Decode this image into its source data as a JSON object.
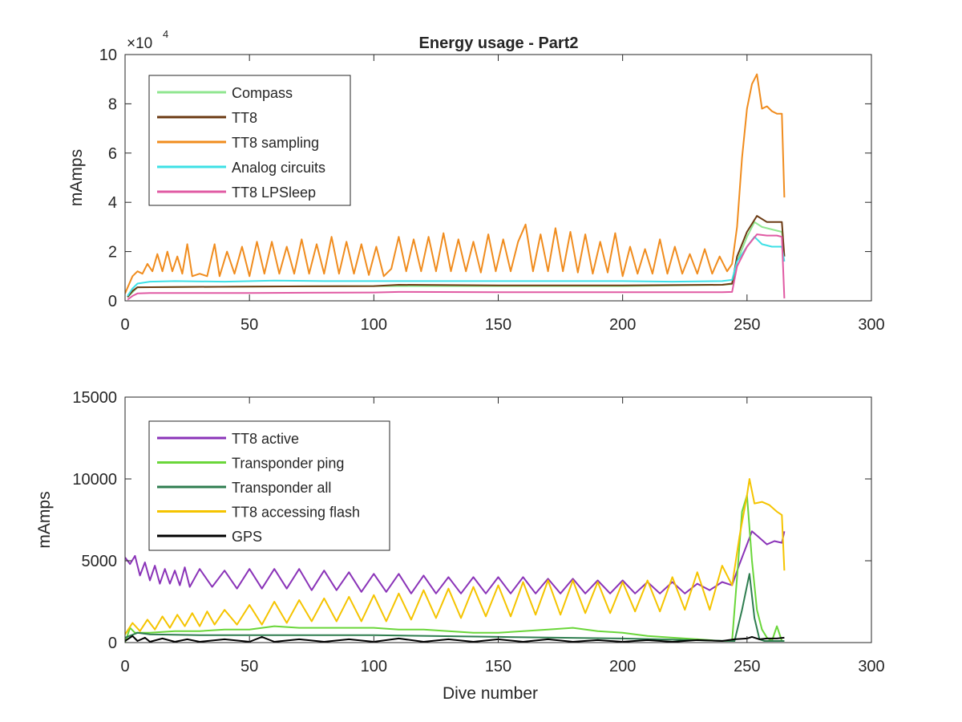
{
  "figure": {
    "title": "Energy usage - Part2",
    "exponent_label": "×10",
    "exponent_power": "4"
  },
  "chart_data": [
    {
      "type": "line",
      "title": "Energy usage - Part2",
      "xlabel": "",
      "ylabel": "mAmps",
      "xlim": [
        0,
        300
      ],
      "ylim": [
        0,
        100000
      ],
      "xticks": [
        0,
        50,
        100,
        150,
        200,
        250,
        300
      ],
      "xtick_labels": [
        "0",
        "50",
        "100",
        "150",
        "200",
        "250",
        "300"
      ],
      "yticks": [
        0,
        20000,
        40000,
        60000,
        80000,
        100000
      ],
      "ytick_labels": [
        "0",
        "2",
        "4",
        "6",
        "8",
        "10"
      ],
      "y_exponent": "×10^4",
      "legend_position": "top-left",
      "grid": false,
      "series": [
        {
          "name": "Compass",
          "color": "#8fe68f",
          "x": [
            1,
            3,
            5,
            50,
            100,
            150,
            200,
            240,
            244,
            246,
            250,
            253,
            256,
            260,
            264,
            265
          ],
          "y": [
            1500,
            3500,
            5500,
            5800,
            6000,
            6000,
            6000,
            6500,
            6800,
            16000,
            26000,
            32000,
            30000,
            29000,
            28000,
            18000
          ]
        },
        {
          "name": "TT8",
          "color": "#6b3a12",
          "x": [
            1,
            3,
            5,
            50,
            100,
            110,
            150,
            200,
            240,
            244,
            246,
            250,
            254,
            258,
            262,
            264,
            265
          ],
          "y": [
            1500,
            4000,
            5500,
            5800,
            6000,
            6500,
            6300,
            6300,
            6500,
            7000,
            18000,
            28000,
            34500,
            32000,
            32000,
            32000,
            18000
          ]
        },
        {
          "name": "TT8 sampling",
          "color": "#f08c1e",
          "x": [
            0,
            3,
            5,
            7,
            9,
            11,
            13,
            15,
            17,
            19,
            21,
            23,
            25,
            27,
            30,
            33,
            36,
            38,
            41,
            44,
            47,
            50,
            53,
            56,
            59,
            62,
            65,
            68,
            71,
            74,
            77,
            80,
            83,
            86,
            89,
            92,
            95,
            98,
            101,
            104,
            107,
            110,
            113,
            116,
            119,
            122,
            125,
            128,
            131,
            134,
            137,
            140,
            143,
            146,
            149,
            152,
            155,
            158,
            161,
            164,
            167,
            170,
            173,
            176,
            179,
            182,
            185,
            188,
            191,
            194,
            197,
            200,
            203,
            206,
            209,
            212,
            215,
            218,
            221,
            224,
            227,
            230,
            233,
            236,
            239,
            242,
            244,
            246,
            248,
            250,
            252,
            254,
            256,
            258,
            260,
            262,
            264,
            265
          ],
          "y": [
            3000,
            10000,
            12000,
            11000,
            15000,
            12000,
            19000,
            12000,
            20000,
            12000,
            18000,
            11000,
            23000,
            10000,
            11000,
            10000,
            23000,
            10000,
            20000,
            11000,
            22000,
            10000,
            24000,
            11000,
            24000,
            11000,
            22000,
            11000,
            25000,
            11000,
            23000,
            11000,
            26000,
            11000,
            24000,
            11000,
            23000,
            10500,
            22000,
            10000,
            13000,
            26000,
            12000,
            25000,
            12000,
            26000,
            12000,
            27500,
            12000,
            25000,
            12000,
            24000,
            11500,
            27000,
            12000,
            25000,
            12000,
            24000,
            31000,
            12000,
            27000,
            12000,
            29500,
            12000,
            28000,
            11500,
            27000,
            11000,
            24000,
            11500,
            27500,
            10000,
            22000,
            11000,
            21000,
            11000,
            25000,
            11000,
            22000,
            11000,
            19000,
            11000,
            21000,
            11000,
            18000,
            12000,
            15000,
            30000,
            58000,
            78000,
            88000,
            92000,
            78000,
            79000,
            77000,
            76000,
            76000,
            42000
          ]
        },
        {
          "name": "Analog circuits",
          "color": "#3ee0e6",
          "x": [
            1,
            3,
            5,
            10,
            20,
            40,
            60,
            80,
            100,
            120,
            140,
            160,
            180,
            200,
            220,
            240,
            244,
            246,
            250,
            253,
            256,
            260,
            264,
            265
          ],
          "y": [
            2000,
            5000,
            7000,
            7800,
            8000,
            7800,
            8200,
            8000,
            8000,
            8000,
            8000,
            8000,
            8000,
            8000,
            7800,
            8000,
            8500,
            16000,
            22000,
            26000,
            23000,
            22000,
            22000,
            16000
          ]
        },
        {
          "name": "TT8 LPSleep",
          "color": "#e05aa3",
          "x": [
            1,
            3,
            5,
            10,
            50,
            100,
            110,
            150,
            200,
            240,
            244,
            246,
            250,
            254,
            258,
            262,
            264,
            265
          ],
          "y": [
            500,
            2000,
            3000,
            3200,
            3200,
            3400,
            3600,
            3500,
            3500,
            3500,
            3600,
            14000,
            22000,
            27000,
            26500,
            26500,
            26000,
            1000
          ]
        }
      ]
    },
    {
      "type": "line",
      "title": "",
      "xlabel": "Dive number",
      "ylabel": "mAmps",
      "xlim": [
        0,
        300
      ],
      "ylim": [
        0,
        15000
      ],
      "xticks": [
        0,
        50,
        100,
        150,
        200,
        250,
        300
      ],
      "xtick_labels": [
        "0",
        "50",
        "100",
        "150",
        "200",
        "250",
        "300"
      ],
      "yticks": [
        0,
        5000,
        10000,
        15000
      ],
      "ytick_labels": [
        "0",
        "5000",
        "10000",
        "15000"
      ],
      "legend_position": "top-left",
      "grid": false,
      "series": [
        {
          "name": "TT8 active",
          "color": "#8a33b8",
          "x": [
            0,
            2,
            4,
            6,
            8,
            10,
            12,
            14,
            16,
            18,
            20,
            22,
            24,
            26,
            30,
            35,
            40,
            45,
            50,
            55,
            60,
            65,
            70,
            75,
            80,
            85,
            90,
            95,
            100,
            105,
            110,
            115,
            120,
            125,
            130,
            135,
            140,
            145,
            150,
            155,
            160,
            165,
            170,
            175,
            180,
            185,
            190,
            195,
            200,
            205,
            210,
            215,
            220,
            225,
            230,
            235,
            240,
            244,
            247,
            250,
            252,
            255,
            258,
            261,
            264,
            265
          ],
          "y": [
            5200,
            4800,
            5300,
            4100,
            4900,
            3800,
            4700,
            3600,
            4500,
            3600,
            4400,
            3500,
            4600,
            3400,
            4500,
            3400,
            4400,
            3300,
            4500,
            3300,
            4500,
            3300,
            4500,
            3200,
            4400,
            3200,
            4300,
            3100,
            4200,
            3100,
            4200,
            3000,
            4100,
            3000,
            4000,
            3000,
            4000,
            3000,
            4000,
            3000,
            4000,
            3000,
            3900,
            3000,
            3900,
            3000,
            3800,
            3000,
            3800,
            3000,
            3700,
            3000,
            3700,
            3000,
            3600,
            3200,
            3700,
            3500,
            4800,
            6000,
            6800,
            6400,
            6000,
            6200,
            6100,
            6800
          ]
        },
        {
          "name": "Transponder ping",
          "color": "#6ad63a",
          "x": [
            0,
            2,
            4,
            10,
            20,
            30,
            40,
            50,
            60,
            70,
            80,
            90,
            100,
            110,
            120,
            130,
            140,
            150,
            160,
            170,
            180,
            190,
            200,
            210,
            220,
            230,
            240,
            244,
            246,
            248,
            250,
            252,
            254,
            256,
            258,
            260,
            262,
            264,
            265
          ],
          "y": [
            0,
            900,
            600,
            600,
            700,
            700,
            800,
            800,
            1000,
            900,
            900,
            900,
            900,
            800,
            800,
            700,
            600,
            600,
            700,
            800,
            900,
            700,
            600,
            400,
            300,
            200,
            100,
            100,
            4000,
            8000,
            9000,
            5000,
            2000,
            800,
            300,
            100,
            1000,
            100,
            100
          ]
        },
        {
          "name": "Transponder all",
          "color": "#2e7d4f",
          "x": [
            0,
            5,
            10,
            30,
            60,
            100,
            150,
            200,
            243,
            245,
            248,
            251,
            253,
            255,
            257,
            260,
            265
          ],
          "y": [
            300,
            600,
            500,
            450,
            450,
            450,
            350,
            250,
            100,
            100,
            2000,
            4200,
            1500,
            200,
            100,
            100,
            100
          ]
        },
        {
          "name": "TT8 accessing flash",
          "color": "#f5c400",
          "x": [
            0,
            3,
            6,
            9,
            12,
            15,
            18,
            21,
            24,
            27,
            30,
            33,
            36,
            40,
            45,
            50,
            55,
            60,
            65,
            70,
            75,
            80,
            85,
            90,
            95,
            100,
            105,
            110,
            115,
            120,
            125,
            130,
            135,
            140,
            145,
            150,
            155,
            160,
            165,
            170,
            175,
            180,
            185,
            190,
            195,
            200,
            205,
            210,
            215,
            220,
            225,
            230,
            235,
            240,
            244,
            247,
            250,
            251,
            253,
            256,
            259,
            262,
            264,
            265
          ],
          "y": [
            500,
            1200,
            700,
            1400,
            800,
            1600,
            900,
            1700,
            1000,
            1800,
            1000,
            1900,
            1100,
            2000,
            1100,
            2300,
            1100,
            2500,
            1200,
            2600,
            1300,
            2700,
            1300,
            2800,
            1300,
            2900,
            1300,
            3000,
            1400,
            3200,
            1500,
            3300,
            1500,
            3400,
            1600,
            3500,
            1600,
            3700,
            1700,
            3800,
            1700,
            3800,
            1800,
            3700,
            1800,
            3700,
            1900,
            3800,
            1900,
            4000,
            2000,
            4300,
            2000,
            4700,
            3500,
            6500,
            9000,
            10000,
            8500,
            8600,
            8400,
            8000,
            7800,
            4400
          ]
        },
        {
          "name": "GPS",
          "color": "#000000",
          "x": [
            0,
            3,
            5,
            8,
            10,
            15,
            20,
            25,
            30,
            40,
            50,
            55,
            60,
            70,
            80,
            90,
            100,
            110,
            120,
            130,
            140,
            150,
            160,
            170,
            180,
            190,
            200,
            210,
            220,
            230,
            240,
            245,
            250,
            252,
            255,
            258,
            262,
            265
          ],
          "y": [
            100,
            400,
            100,
            300,
            50,
            250,
            50,
            200,
            50,
            200,
            50,
            350,
            50,
            200,
            50,
            200,
            50,
            250,
            50,
            200,
            50,
            200,
            50,
            200,
            50,
            150,
            50,
            150,
            50,
            150,
            100,
            200,
            250,
            350,
            200,
            250,
            250,
            300
          ]
        }
      ]
    }
  ]
}
